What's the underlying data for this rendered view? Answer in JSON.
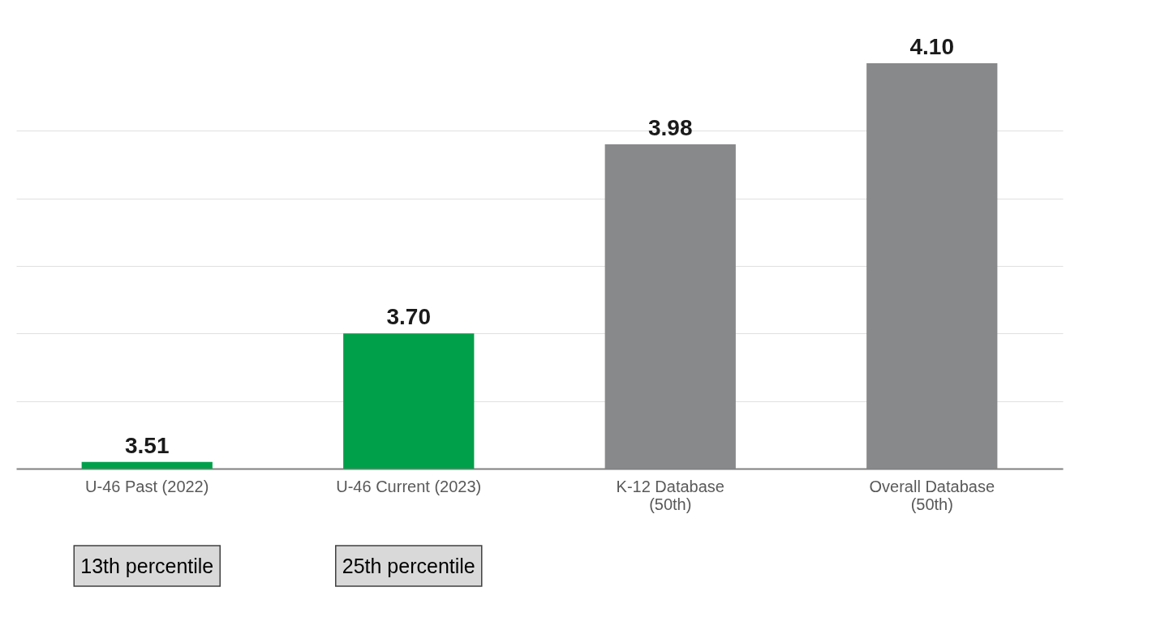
{
  "chart_data": {
    "type": "bar",
    "categories": [
      "U-46 Past (2022)",
      "U-46 Current (2023)",
      "K-12 Database\n(50th)",
      "Overall Database\n(50th)"
    ],
    "values": [
      3.51,
      3.7,
      3.98,
      4.1
    ],
    "colors": [
      "#00a04a",
      "#00a04a",
      "#88898b",
      "#88898b"
    ],
    "ylim": [
      3.5,
      4.1
    ],
    "yticks": [
      {
        "value": 3.6,
        "label": null
      },
      {
        "value": 3.7,
        "label": null
      },
      {
        "value": 3.8,
        "label": null
      },
      {
        "value": 3.9,
        "label": null
      },
      {
        "value": 4.0,
        "label": null
      }
    ],
    "tick_labels": "x",
    "grid": "y",
    "value_labels": [
      "3.51",
      "3.70",
      "3.98",
      "4.10"
    ],
    "annotations": [
      "13th percentile",
      "25th percentile"
    ]
  }
}
